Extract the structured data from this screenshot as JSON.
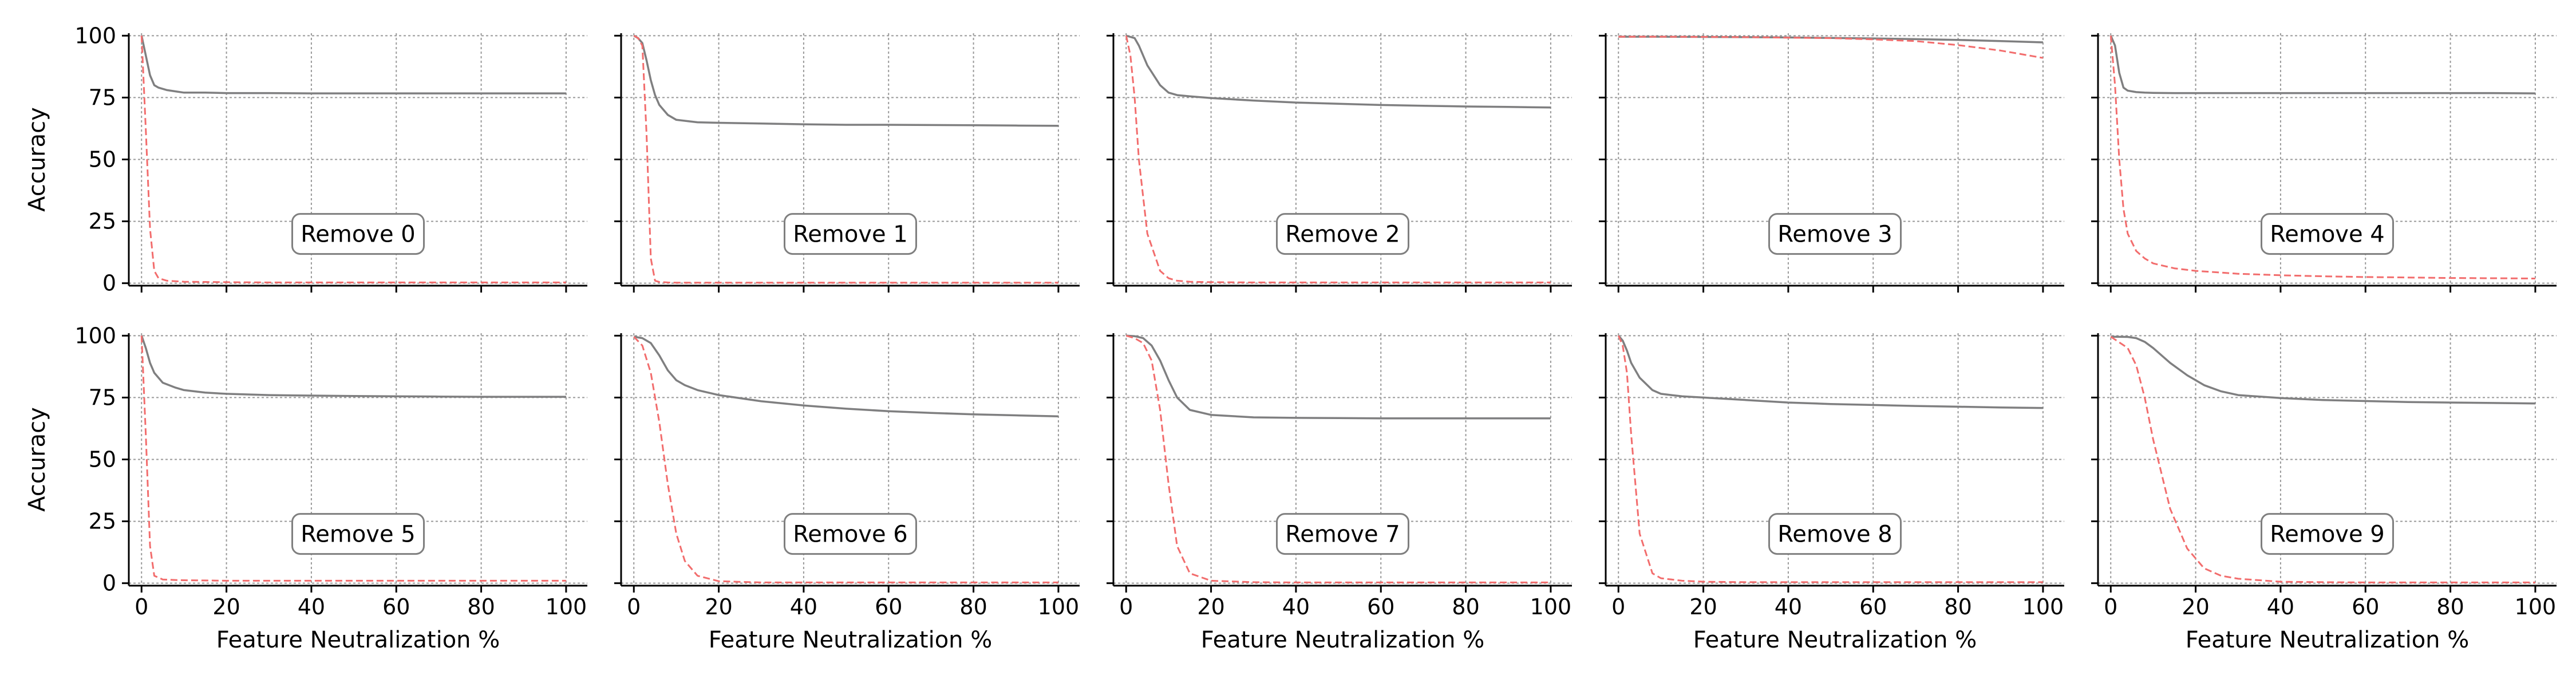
{
  "colors": {
    "overall_line": "#7f7f80",
    "removed_line": "#f26d6d",
    "grid": "#9a9a9a",
    "axis": "#000000",
    "label_box_border": "#7f7f7f"
  },
  "shared": {
    "xlabel": "Feature Neutralization %",
    "ylabel": "Accuracy",
    "xticks": [
      0,
      20,
      40,
      60,
      80,
      100
    ],
    "yticks": [
      0,
      25,
      50,
      75,
      100
    ],
    "xlim": [
      -3,
      105
    ],
    "ylim": [
      -1,
      101
    ],
    "grid": true,
    "layout": {
      "rows": 2,
      "cols": 5
    }
  },
  "chart_data": [
    {
      "type": "line",
      "label": "Remove 0",
      "x": [
        0,
        1,
        2,
        3,
        4,
        6,
        8,
        10,
        15,
        20,
        30,
        40,
        50,
        60,
        70,
        80,
        90,
        100
      ],
      "series": [
        {
          "style": "solid",
          "values": [
            100,
            92,
            84,
            80,
            79,
            78,
            77.5,
            77,
            77,
            76.8,
            76.8,
            76.7,
            76.7,
            76.7,
            76.7,
            76.7,
            76.7,
            76.7
          ]
        },
        {
          "style": "dashed",
          "values": [
            100,
            62,
            22,
            5,
            2,
            1,
            0.8,
            0.6,
            0.5,
            0.4,
            0.3,
            0.3,
            0.3,
            0.3,
            0.3,
            0.3,
            0.3,
            0.3
          ]
        }
      ]
    },
    {
      "type": "line",
      "label": "Remove 1",
      "x": [
        0,
        1,
        2,
        3,
        4,
        5,
        6,
        8,
        10,
        15,
        20,
        30,
        40,
        50,
        60,
        70,
        80,
        90,
        100
      ],
      "series": [
        {
          "style": "solid",
          "values": [
            100,
            99,
            97,
            90,
            82,
            76,
            72,
            68,
            66,
            65,
            64.8,
            64.5,
            64.2,
            64,
            64,
            63.9,
            63.8,
            63.7,
            63.6
          ]
        },
        {
          "style": "dashed",
          "values": [
            100,
            99,
            96,
            60,
            10,
            1,
            0.5,
            0.3,
            0.2,
            0.2,
            0.2,
            0.2,
            0.2,
            0.2,
            0.2,
            0.2,
            0.2,
            0.2,
            0.2
          ]
        }
      ]
    },
    {
      "type": "line",
      "label": "Remove 2",
      "x": [
        0,
        1,
        2,
        3,
        5,
        8,
        10,
        12,
        15,
        20,
        30,
        40,
        50,
        60,
        70,
        80,
        90,
        100
      ],
      "series": [
        {
          "style": "solid",
          "values": [
            100,
            99.5,
            99,
            96,
            88,
            80,
            77,
            76,
            75.5,
            74.8,
            73.8,
            73,
            72.5,
            72,
            71.7,
            71.4,
            71.2,
            71
          ]
        },
        {
          "style": "dashed",
          "values": [
            100,
            92,
            75,
            50,
            20,
            5,
            2,
            1,
            0.6,
            0.4,
            0.3,
            0.3,
            0.3,
            0.3,
            0.3,
            0.3,
            0.3,
            0.3
          ]
        }
      ]
    },
    {
      "type": "line",
      "label": "Remove 3",
      "x": [
        0,
        10,
        20,
        30,
        40,
        50,
        60,
        70,
        80,
        90,
        100
      ],
      "series": [
        {
          "style": "solid",
          "values": [
            99.6,
            99.6,
            99.5,
            99.4,
            99.3,
            99.1,
            98.9,
            98.6,
            98.3,
            97.8,
            97.3
          ]
        },
        {
          "style": "dashed",
          "values": [
            99.6,
            99.6,
            99.5,
            99.4,
            99.2,
            99,
            98.5,
            97.8,
            96.2,
            94,
            91
          ]
        }
      ]
    },
    {
      "type": "line",
      "label": "Remove 4",
      "x": [
        0,
        1,
        2,
        3,
        4,
        6,
        8,
        10,
        15,
        20,
        30,
        40,
        50,
        60,
        70,
        80,
        90,
        100
      ],
      "series": [
        {
          "style": "solid",
          "values": [
            100,
            96,
            85,
            79,
            77.8,
            77.2,
            77,
            76.9,
            76.8,
            76.8,
            76.8,
            76.8,
            76.8,
            76.8,
            76.8,
            76.8,
            76.8,
            76.7
          ]
        },
        {
          "style": "dashed",
          "values": [
            100,
            80,
            50,
            30,
            20,
            13,
            10,
            8,
            6,
            5,
            3.8,
            3.2,
            2.8,
            2.5,
            2.3,
            2.1,
            2,
            1.9
          ]
        }
      ]
    },
    {
      "type": "line",
      "label": "Remove 5",
      "x": [
        0,
        1,
        2,
        3,
        5,
        8,
        10,
        15,
        20,
        30,
        40,
        50,
        60,
        70,
        80,
        90,
        100
      ],
      "series": [
        {
          "style": "solid",
          "values": [
            100,
            95,
            89,
            85,
            81,
            79,
            78,
            77,
            76.5,
            76,
            75.8,
            75.6,
            75.5,
            75.4,
            75.3,
            75.3,
            75.3
          ]
        },
        {
          "style": "dashed",
          "values": [
            100,
            60,
            15,
            3,
            1.5,
            1.3,
            1.2,
            1.1,
            1,
            1,
            1,
            1,
            1,
            1,
            1,
            1,
            1
          ]
        }
      ]
    },
    {
      "type": "line",
      "label": "Remove 6",
      "x": [
        0,
        2,
        4,
        6,
        8,
        10,
        12,
        15,
        20,
        30,
        40,
        50,
        60,
        70,
        80,
        90,
        100
      ],
      "series": [
        {
          "style": "solid",
          "values": [
            99.6,
            99,
            97,
            92,
            86,
            82,
            80,
            78,
            76,
            73.5,
            71.8,
            70.5,
            69.5,
            68.8,
            68.2,
            67.8,
            67.4
          ]
        },
        {
          "style": "dashed",
          "values": [
            99.6,
            96,
            85,
            65,
            40,
            20,
            9,
            3,
            0.8,
            0.3,
            0.3,
            0.3,
            0.3,
            0.3,
            0.3,
            0.3,
            0.3
          ]
        }
      ]
    },
    {
      "type": "line",
      "label": "Remove 7",
      "x": [
        0,
        2,
        4,
        6,
        8,
        10,
        12,
        15,
        20,
        30,
        40,
        50,
        60,
        70,
        80,
        90,
        100
      ],
      "series": [
        {
          "style": "solid",
          "values": [
            100,
            99.8,
            99,
            96,
            90,
            82,
            75,
            70,
            68,
            67,
            66.8,
            66.7,
            66.6,
            66.6,
            66.6,
            66.6,
            66.6
          ]
        },
        {
          "style": "dashed",
          "values": [
            100,
            99,
            97,
            90,
            70,
            40,
            15,
            4,
            1,
            0.4,
            0.3,
            0.3,
            0.3,
            0.3,
            0.3,
            0.3,
            0.3
          ]
        }
      ]
    },
    {
      "type": "line",
      "label": "Remove 8",
      "x": [
        0,
        1,
        2,
        3,
        5,
        8,
        10,
        15,
        20,
        30,
        40,
        50,
        60,
        70,
        80,
        90,
        100
      ],
      "series": [
        {
          "style": "solid",
          "values": [
            100,
            98,
            94,
            89,
            83,
            78,
            76.5,
            75.5,
            75,
            74,
            73,
            72.4,
            72,
            71.6,
            71.3,
            71,
            70.8
          ]
        },
        {
          "style": "dashed",
          "values": [
            100,
            96,
            85,
            60,
            20,
            4,
            2,
            1,
            0.6,
            0.4,
            0.4,
            0.4,
            0.4,
            0.4,
            0.4,
            0.4,
            0.4
          ]
        }
      ]
    },
    {
      "type": "line",
      "label": "Remove 9",
      "x": [
        0,
        4,
        6,
        8,
        10,
        14,
        18,
        22,
        26,
        30,
        40,
        50,
        60,
        70,
        80,
        90,
        100
      ],
      "series": [
        {
          "style": "solid",
          "values": [
            99.6,
            99.5,
            99,
            97.5,
            95,
            89,
            84,
            80,
            77.5,
            76,
            74.8,
            74,
            73.6,
            73.2,
            73,
            72.8,
            72.6
          ]
        },
        {
          "style": "dashed",
          "values": [
            99.6,
            95,
            88,
            75,
            58,
            30,
            14,
            6,
            3,
            1.8,
            0.6,
            0.4,
            0.3,
            0.3,
            0.3,
            0.3,
            0.3
          ]
        }
      ]
    }
  ]
}
